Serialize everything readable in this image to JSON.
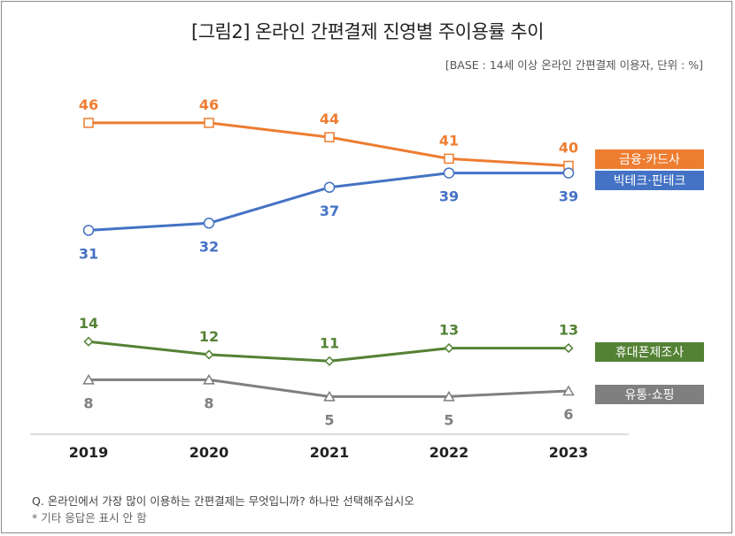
{
  "chart_data": {
    "type": "line",
    "title": "[그림2] 온라인 간편결제 진영별 주이용률 추이",
    "subtitle": "[BASE : 14세 이상 온라인 간편결제 이용자, 단위 : %]",
    "x": [
      "2019",
      "2020",
      "2021",
      "2022",
      "2023"
    ],
    "ylim": [
      0,
      50
    ],
    "series": [
      {
        "name": "금융·카드사",
        "values": [
          46,
          46,
          44,
          41,
          40
        ],
        "color": "#ed7d31",
        "marker": "square"
      },
      {
        "name": "빅테크·핀테크",
        "values": [
          31,
          32,
          37,
          39,
          39
        ],
        "color": "#4472c4",
        "marker": "circle"
      },
      {
        "name": "휴대폰제조사",
        "values": [
          14,
          12,
          11,
          13,
          13
        ],
        "color": "#548235",
        "marker": "diamond"
      },
      {
        "name": "유통·쇼핑",
        "values": [
          8,
          8,
          5,
          5,
          6
        ],
        "color": "#7f7f7f",
        "marker": "triangle"
      }
    ],
    "footnotes": [
      "Q. 온라인에서 가장 많이 이용하는 간편결제는 무엇입니까? 하나만 선택해주십시오",
      "* 기타 응답은 표시 안 함"
    ]
  }
}
